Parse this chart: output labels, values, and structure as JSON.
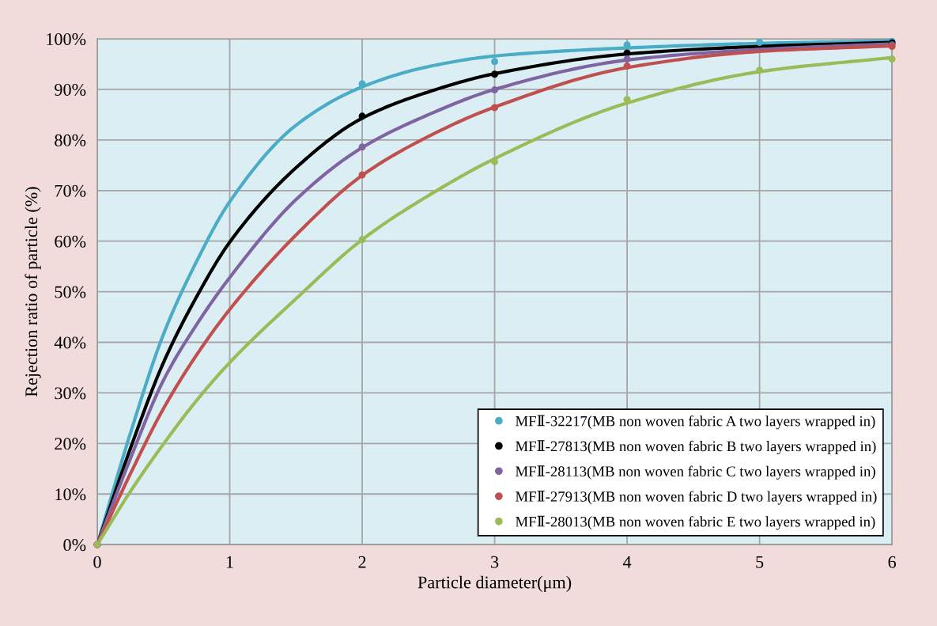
{
  "chart_data": {
    "type": "scatter",
    "xlabel": "Particle diameter(μm)",
    "ylabel": "Rejection ratio of particle (%)",
    "xlim": [
      0,
      6
    ],
    "xticks": [
      0,
      1,
      2,
      3,
      4,
      5,
      6
    ],
    "ylim": [
      0,
      100
    ],
    "yticks": [
      {
        "value": 0,
        "label": "0%"
      },
      {
        "value": 10,
        "label": "10%"
      },
      {
        "value": 20,
        "label": "20%"
      },
      {
        "value": 30,
        "label": "30%"
      },
      {
        "value": 40,
        "label": "40%"
      },
      {
        "value": 50,
        "label": "50%"
      },
      {
        "value": 60,
        "label": "60%"
      },
      {
        "value": 70,
        "label": "70%"
      },
      {
        "value": 80,
        "label": "80%"
      },
      {
        "value": 90,
        "label": "90%"
      },
      {
        "value": 100,
        "label": "100%"
      }
    ],
    "grid": true,
    "legend": "bottom right",
    "marker": "circle",
    "series": [
      {
        "type": "line",
        "marker": "none",
        "color": "#4bacc6",
        "x": [
          0,
          0.25,
          0.5,
          0.75,
          1,
          1.5,
          2,
          2.5,
          3,
          4,
          5,
          6
        ],
        "values": [
          0,
          22,
          41.6,
          56,
          67.8,
          82.9,
          90.5,
          94.5,
          96.6,
          98.2,
          99.1,
          99.6
        ]
      },
      {
        "type": "line",
        "marker": "none",
        "color": "#000000",
        "x": [
          0,
          0.25,
          0.5,
          0.75,
          1,
          1.5,
          2,
          2.5,
          3,
          4,
          5,
          6
        ],
        "values": [
          0,
          19,
          36,
          49,
          59.8,
          74.5,
          84.3,
          89.5,
          93.1,
          97,
          98.5,
          99.3
        ]
      },
      {
        "type": "line",
        "marker": "none",
        "color": "#8064a2",
        "x": [
          0,
          0.25,
          0.5,
          0.75,
          1,
          1.5,
          2,
          2.5,
          3,
          4,
          5,
          6
        ],
        "values": [
          0,
          17,
          32.5,
          43.5,
          52.8,
          68.2,
          78.5,
          85,
          90,
          95.8,
          97.9,
          99
        ]
      },
      {
        "type": "line",
        "marker": "none",
        "color": "#c0504d",
        "x": [
          0,
          0.25,
          0.5,
          0.75,
          1,
          1.5,
          2,
          2.5,
          3,
          4,
          5,
          6
        ],
        "values": [
          0,
          14,
          26.9,
          37.5,
          46.5,
          61.2,
          73,
          80.7,
          86.5,
          94.3,
          97.5,
          98.6
        ]
      },
      {
        "type": "line",
        "marker": "none",
        "color": "#9bbb59",
        "x": [
          0,
          0.25,
          0.5,
          0.75,
          1,
          1.5,
          2,
          2.5,
          3,
          4,
          5,
          6
        ],
        "values": [
          0,
          10.5,
          19.9,
          28.5,
          36,
          48.6,
          60.3,
          69,
          76.3,
          87.3,
          93.5,
          96.3
        ]
      },
      {
        "name": "MFⅡ-32217(MB non woven fabric A two layers wrapped in)",
        "color": "#4bacc6",
        "x": [
          0,
          2,
          3,
          4,
          5,
          6
        ],
        "values": [
          0,
          91.1,
          95.5,
          98.8,
          99.3,
          99.5
        ]
      },
      {
        "name": "MFⅡ-27813(MB non woven fabric B two layers wrapped in)",
        "color": "#000000",
        "x": [
          0,
          2,
          3,
          4,
          6
        ],
        "values": [
          0,
          84.7,
          93,
          97.2,
          99.2
        ]
      },
      {
        "name": "MFⅡ-28113(MB non woven fabric C two layers wrapped in)",
        "color": "#8064a2",
        "x": [
          0,
          2,
          3,
          4,
          6
        ],
        "values": [
          0,
          78.6,
          89.9,
          96,
          98.8
        ]
      },
      {
        "name": "MFⅡ-27913(MB non woven fabric D two layers wrapped in)",
        "color": "#c0504d",
        "x": [
          0,
          2,
          3,
          4,
          6
        ],
        "values": [
          0,
          73.1,
          86.4,
          94.6,
          98.5
        ]
      },
      {
        "name": "MFⅡ-28013(MB non woven fabric E two layers wrapped in)",
        "color": "#9bbb59",
        "x": [
          0,
          2,
          3,
          4,
          5,
          6
        ],
        "values": [
          0,
          60.3,
          75.7,
          88,
          93.8,
          96
        ]
      }
    ]
  }
}
